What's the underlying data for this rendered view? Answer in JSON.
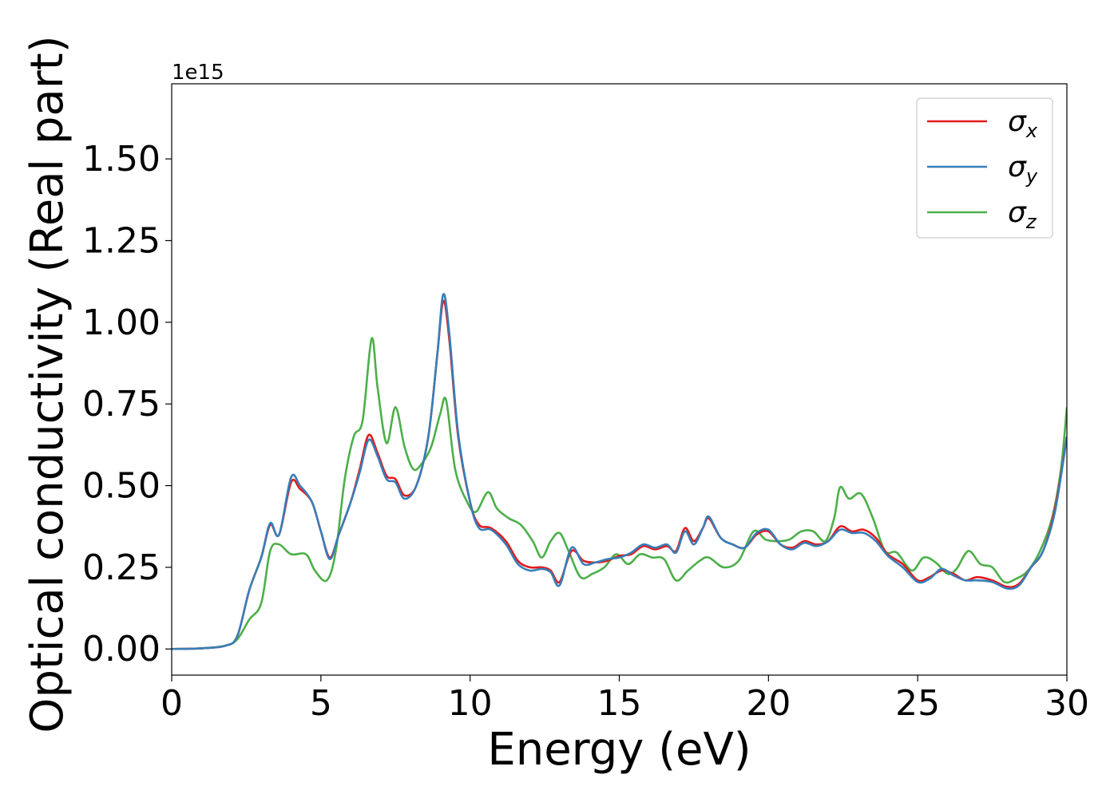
{
  "chart_data": {
    "type": "line",
    "xlabel": "Energy (eV)",
    "ylabel": "Optical conductivity (Real part)",
    "y_offset_text": "1e15",
    "xlim": [
      0,
      30
    ],
    "ylim": [
      -0.08,
      1.73
    ],
    "x_ticks": [
      0,
      5,
      10,
      15,
      20,
      25,
      30
    ],
    "x_tick_labels": [
      "0",
      "5",
      "10",
      "15",
      "20",
      "25",
      "30"
    ],
    "y_ticks": [
      0.0,
      0.25,
      0.5,
      0.75,
      1.0,
      1.25,
      1.5
    ],
    "y_tick_labels": [
      "0.00",
      "0.25",
      "0.50",
      "0.75",
      "1.00",
      "1.25",
      "1.50"
    ],
    "grid": false,
    "legend_position": "top-right",
    "series": [
      {
        "name": "σ",
        "subscript": "x",
        "color": "#e41a1c",
        "points": [
          [
            0,
            0
          ],
          [
            1,
            0.002
          ],
          [
            1.8,
            0.01
          ],
          [
            2.2,
            0.04
          ],
          [
            2.6,
            0.18
          ],
          [
            3.0,
            0.28
          ],
          [
            3.3,
            0.38
          ],
          [
            3.6,
            0.35
          ],
          [
            4.0,
            0.51
          ],
          [
            4.3,
            0.49
          ],
          [
            4.7,
            0.45
          ],
          [
            5.0,
            0.36
          ],
          [
            5.3,
            0.28
          ],
          [
            5.6,
            0.35
          ],
          [
            6.0,
            0.45
          ],
          [
            6.3,
            0.55
          ],
          [
            6.6,
            0.655
          ],
          [
            6.9,
            0.6
          ],
          [
            7.2,
            0.53
          ],
          [
            7.5,
            0.52
          ],
          [
            7.8,
            0.47
          ],
          [
            8.2,
            0.5
          ],
          [
            8.6,
            0.65
          ],
          [
            8.9,
            0.9
          ],
          [
            9.1,
            1.065
          ],
          [
            9.3,
            0.95
          ],
          [
            9.6,
            0.65
          ],
          [
            10.0,
            0.45
          ],
          [
            10.3,
            0.38
          ],
          [
            10.7,
            0.37
          ],
          [
            11.2,
            0.33
          ],
          [
            11.6,
            0.27
          ],
          [
            12.0,
            0.25
          ],
          [
            12.4,
            0.25
          ],
          [
            12.7,
            0.24
          ],
          [
            13.0,
            0.205
          ],
          [
            13.4,
            0.3
          ],
          [
            13.8,
            0.27
          ],
          [
            14.2,
            0.265
          ],
          [
            14.6,
            0.27
          ],
          [
            15.0,
            0.285
          ],
          [
            15.4,
            0.29
          ],
          [
            15.8,
            0.315
          ],
          [
            16.2,
            0.305
          ],
          [
            16.6,
            0.315
          ],
          [
            16.9,
            0.3
          ],
          [
            17.2,
            0.37
          ],
          [
            17.5,
            0.33
          ],
          [
            17.8,
            0.37
          ],
          [
            18.0,
            0.4
          ],
          [
            18.4,
            0.34
          ],
          [
            18.8,
            0.32
          ],
          [
            19.2,
            0.31
          ],
          [
            19.6,
            0.35
          ],
          [
            20.0,
            0.36
          ],
          [
            20.4,
            0.32
          ],
          [
            20.8,
            0.31
          ],
          [
            21.2,
            0.33
          ],
          [
            21.6,
            0.32
          ],
          [
            22.0,
            0.33
          ],
          [
            22.4,
            0.375
          ],
          [
            22.8,
            0.36
          ],
          [
            23.2,
            0.365
          ],
          [
            23.6,
            0.34
          ],
          [
            24.0,
            0.29
          ],
          [
            24.5,
            0.26
          ],
          [
            25.0,
            0.21
          ],
          [
            25.4,
            0.22
          ],
          [
            25.8,
            0.24
          ],
          [
            26.2,
            0.23
          ],
          [
            26.6,
            0.21
          ],
          [
            27.0,
            0.22
          ],
          [
            27.5,
            0.21
          ],
          [
            28.0,
            0.19
          ],
          [
            28.4,
            0.2
          ],
          [
            28.8,
            0.25
          ],
          [
            29.2,
            0.3
          ],
          [
            29.6,
            0.43
          ],
          [
            30.0,
            0.65
          ]
        ]
      },
      {
        "name": "σ",
        "subscript": "y",
        "color": "#377eb8",
        "points": [
          [
            0,
            0
          ],
          [
            1,
            0.002
          ],
          [
            1.8,
            0.01
          ],
          [
            2.2,
            0.04
          ],
          [
            2.6,
            0.18
          ],
          [
            3.0,
            0.28
          ],
          [
            3.3,
            0.385
          ],
          [
            3.6,
            0.35
          ],
          [
            4.0,
            0.525
          ],
          [
            4.3,
            0.5
          ],
          [
            4.7,
            0.45
          ],
          [
            5.0,
            0.36
          ],
          [
            5.3,
            0.275
          ],
          [
            5.6,
            0.35
          ],
          [
            6.0,
            0.45
          ],
          [
            6.3,
            0.54
          ],
          [
            6.6,
            0.64
          ],
          [
            6.9,
            0.59
          ],
          [
            7.2,
            0.52
          ],
          [
            7.5,
            0.51
          ],
          [
            7.8,
            0.46
          ],
          [
            8.2,
            0.5
          ],
          [
            8.6,
            0.65
          ],
          [
            8.9,
            0.9
          ],
          [
            9.1,
            1.085
          ],
          [
            9.3,
            0.97
          ],
          [
            9.6,
            0.66
          ],
          [
            10.0,
            0.45
          ],
          [
            10.3,
            0.37
          ],
          [
            10.7,
            0.365
          ],
          [
            11.2,
            0.32
          ],
          [
            11.6,
            0.26
          ],
          [
            12.0,
            0.24
          ],
          [
            12.4,
            0.245
          ],
          [
            12.7,
            0.235
          ],
          [
            13.0,
            0.195
          ],
          [
            13.4,
            0.31
          ],
          [
            13.8,
            0.26
          ],
          [
            14.2,
            0.265
          ],
          [
            14.6,
            0.275
          ],
          [
            15.0,
            0.28
          ],
          [
            15.4,
            0.295
          ],
          [
            15.8,
            0.32
          ],
          [
            16.2,
            0.31
          ],
          [
            16.6,
            0.32
          ],
          [
            16.9,
            0.295
          ],
          [
            17.2,
            0.36
          ],
          [
            17.5,
            0.32
          ],
          [
            17.8,
            0.37
          ],
          [
            18.0,
            0.405
          ],
          [
            18.4,
            0.34
          ],
          [
            18.8,
            0.32
          ],
          [
            19.2,
            0.31
          ],
          [
            19.6,
            0.355
          ],
          [
            20.0,
            0.365
          ],
          [
            20.4,
            0.32
          ],
          [
            20.8,
            0.305
          ],
          [
            21.2,
            0.325
          ],
          [
            21.6,
            0.315
          ],
          [
            22.0,
            0.33
          ],
          [
            22.4,
            0.365
          ],
          [
            22.8,
            0.355
          ],
          [
            23.2,
            0.355
          ],
          [
            23.6,
            0.33
          ],
          [
            24.0,
            0.285
          ],
          [
            24.5,
            0.25
          ],
          [
            25.0,
            0.205
          ],
          [
            25.4,
            0.215
          ],
          [
            25.8,
            0.245
          ],
          [
            26.2,
            0.225
          ],
          [
            26.6,
            0.21
          ],
          [
            27.0,
            0.21
          ],
          [
            27.5,
            0.205
          ],
          [
            28.0,
            0.185
          ],
          [
            28.4,
            0.195
          ],
          [
            28.8,
            0.25
          ],
          [
            29.2,
            0.3
          ],
          [
            29.6,
            0.42
          ],
          [
            30.0,
            0.65
          ]
        ]
      },
      {
        "name": "σ",
        "subscript": "z",
        "color": "#4daf4a",
        "points": [
          [
            0,
            0
          ],
          [
            1,
            0.002
          ],
          [
            1.8,
            0.01
          ],
          [
            2.2,
            0.03
          ],
          [
            2.6,
            0.09
          ],
          [
            3.0,
            0.14
          ],
          [
            3.3,
            0.3
          ],
          [
            3.6,
            0.32
          ],
          [
            4.0,
            0.29
          ],
          [
            4.5,
            0.29
          ],
          [
            4.8,
            0.24
          ],
          [
            5.2,
            0.21
          ],
          [
            5.5,
            0.3
          ],
          [
            5.8,
            0.52
          ],
          [
            6.1,
            0.65
          ],
          [
            6.4,
            0.7
          ],
          [
            6.7,
            0.95
          ],
          [
            6.9,
            0.8
          ],
          [
            7.2,
            0.63
          ],
          [
            7.5,
            0.74
          ],
          [
            7.8,
            0.62
          ],
          [
            8.1,
            0.55
          ],
          [
            8.4,
            0.57
          ],
          [
            8.7,
            0.62
          ],
          [
            9.0,
            0.72
          ],
          [
            9.2,
            0.76
          ],
          [
            9.5,
            0.55
          ],
          [
            9.9,
            0.45
          ],
          [
            10.2,
            0.42
          ],
          [
            10.6,
            0.48
          ],
          [
            10.9,
            0.43
          ],
          [
            11.3,
            0.4
          ],
          [
            11.7,
            0.38
          ],
          [
            12.1,
            0.33
          ],
          [
            12.4,
            0.28
          ],
          [
            12.7,
            0.33
          ],
          [
            13.0,
            0.355
          ],
          [
            13.3,
            0.3
          ],
          [
            13.7,
            0.22
          ],
          [
            14.1,
            0.23
          ],
          [
            14.5,
            0.25
          ],
          [
            14.9,
            0.29
          ],
          [
            15.3,
            0.26
          ],
          [
            15.7,
            0.29
          ],
          [
            16.1,
            0.28
          ],
          [
            16.5,
            0.275
          ],
          [
            16.9,
            0.21
          ],
          [
            17.3,
            0.24
          ],
          [
            17.7,
            0.27
          ],
          [
            18.0,
            0.28
          ],
          [
            18.5,
            0.25
          ],
          [
            19.0,
            0.27
          ],
          [
            19.5,
            0.36
          ],
          [
            19.9,
            0.335
          ],
          [
            20.3,
            0.33
          ],
          [
            20.7,
            0.335
          ],
          [
            21.1,
            0.36
          ],
          [
            21.5,
            0.36
          ],
          [
            21.9,
            0.33
          ],
          [
            22.2,
            0.4
          ],
          [
            22.4,
            0.495
          ],
          [
            22.7,
            0.46
          ],
          [
            23.1,
            0.475
          ],
          [
            23.5,
            0.4
          ],
          [
            23.9,
            0.3
          ],
          [
            24.3,
            0.295
          ],
          [
            24.8,
            0.24
          ],
          [
            25.2,
            0.28
          ],
          [
            25.6,
            0.265
          ],
          [
            26.0,
            0.23
          ],
          [
            26.3,
            0.245
          ],
          [
            26.7,
            0.3
          ],
          [
            27.1,
            0.26
          ],
          [
            27.5,
            0.25
          ],
          [
            27.9,
            0.205
          ],
          [
            28.3,
            0.215
          ],
          [
            28.7,
            0.24
          ],
          [
            29.1,
            0.3
          ],
          [
            29.5,
            0.4
          ],
          [
            29.8,
            0.55
          ],
          [
            30.0,
            0.74
          ]
        ]
      }
    ]
  }
}
